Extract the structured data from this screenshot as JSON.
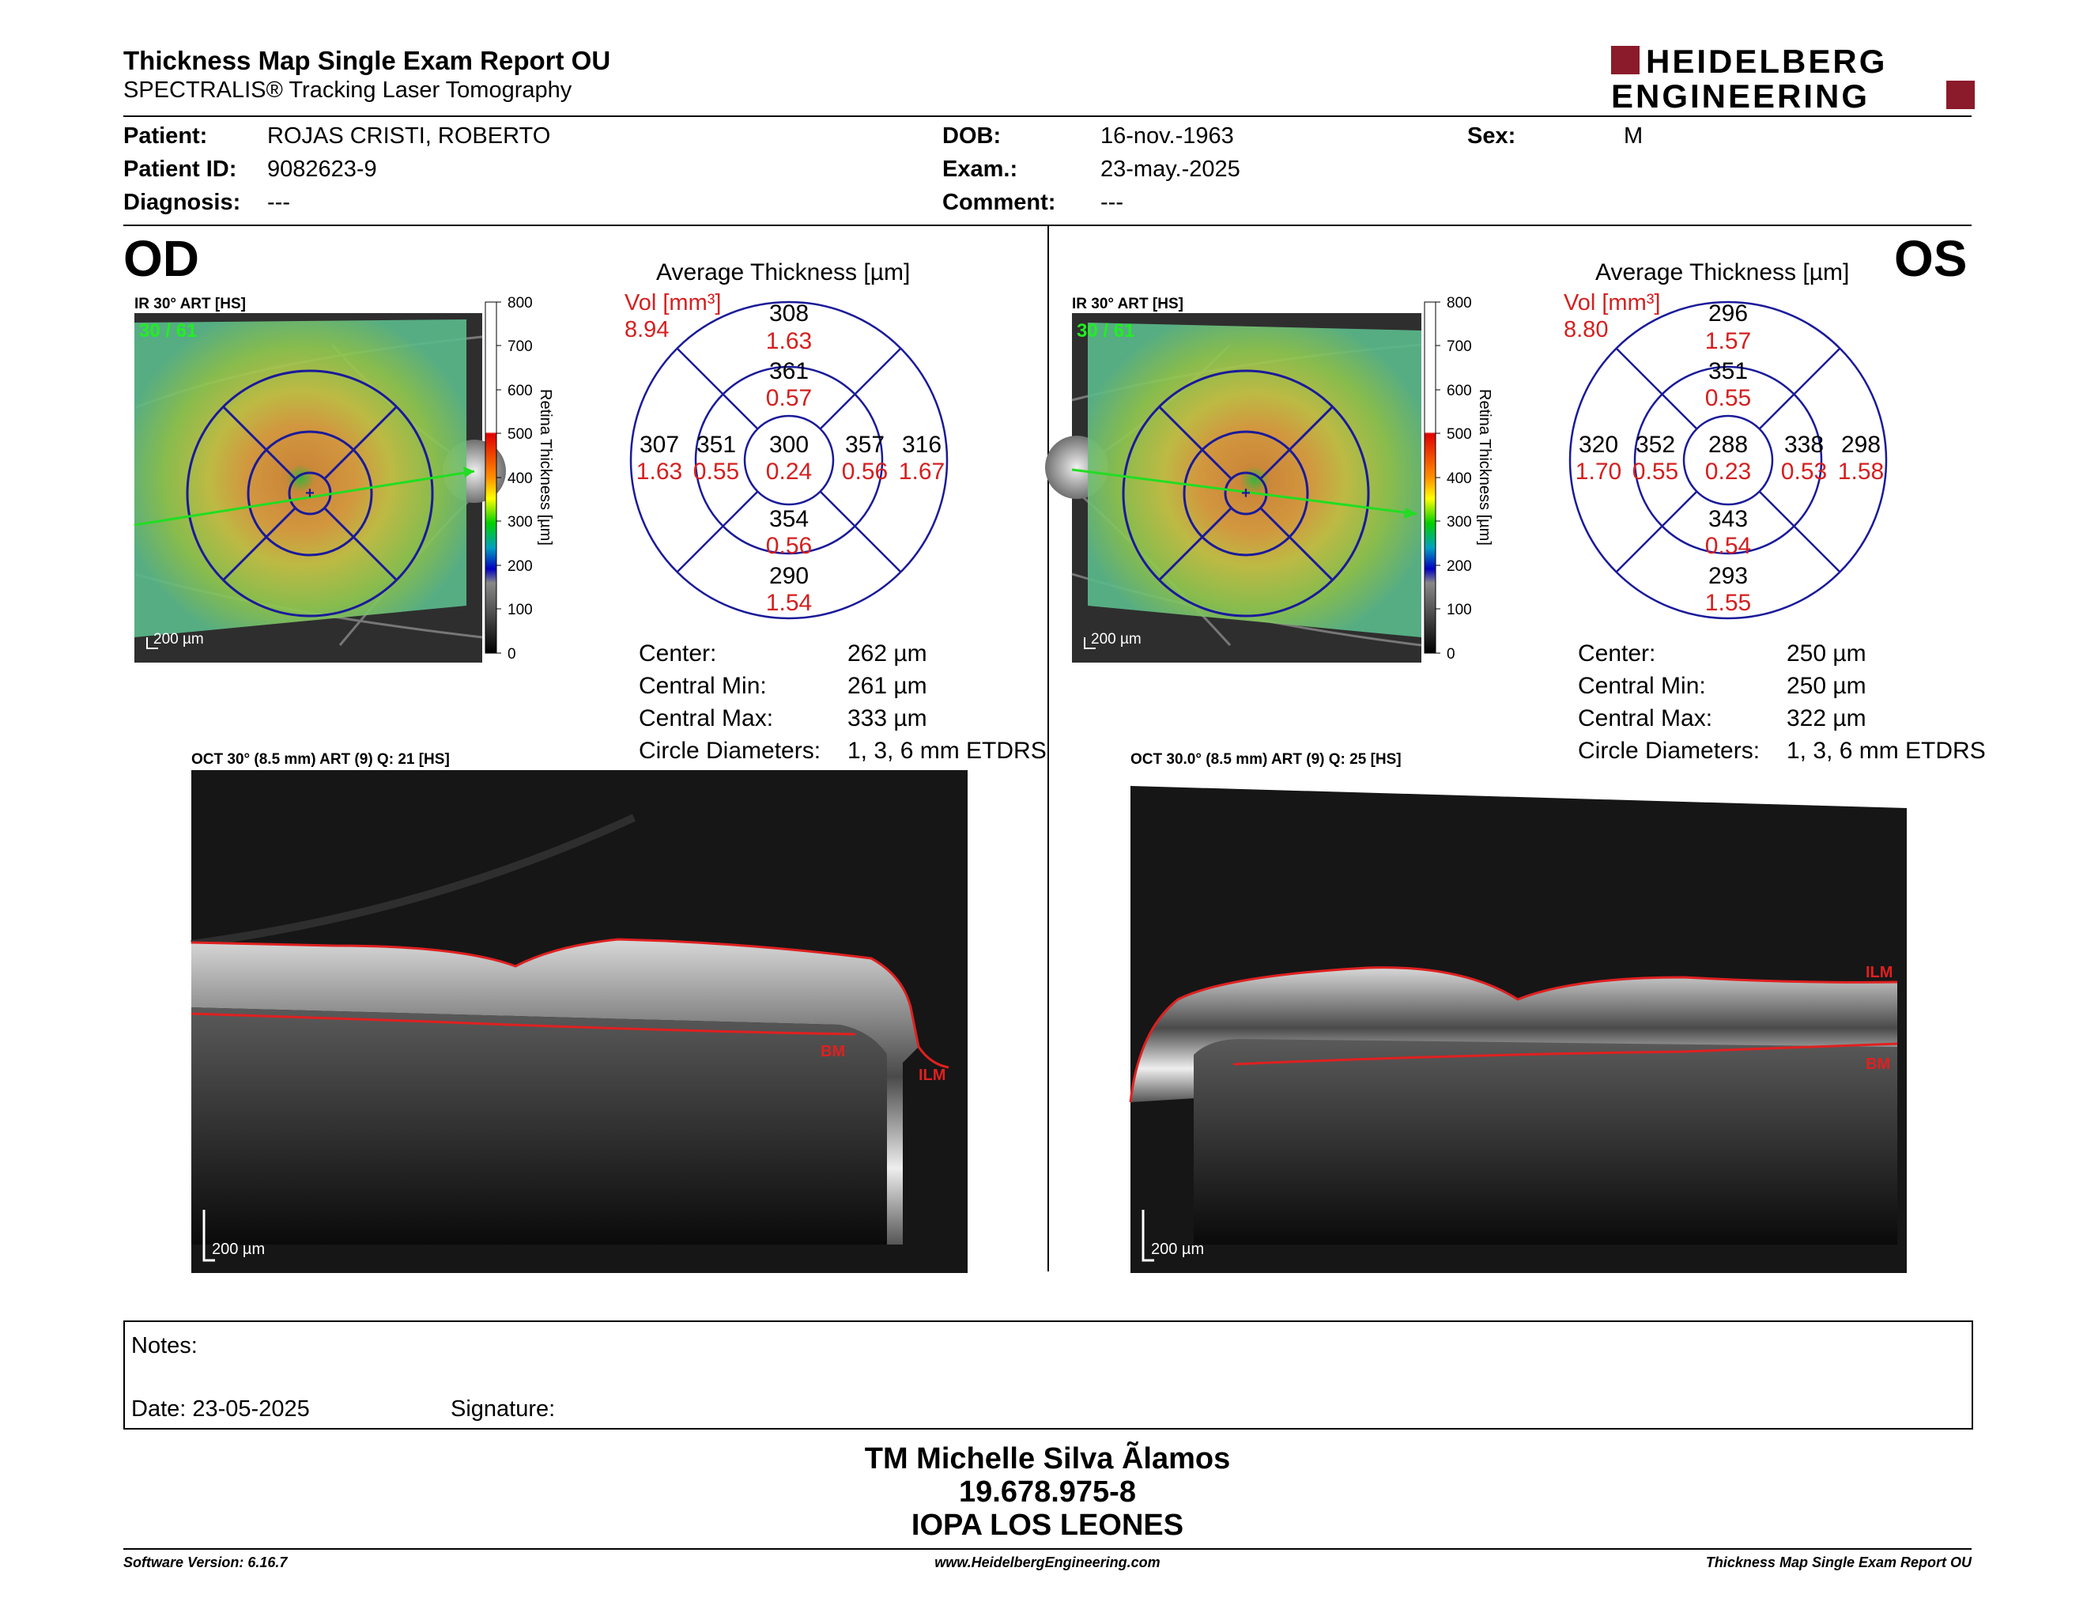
{
  "header": {
    "title": "Thickness Map Single Exam Report OU",
    "subtitle": "SPECTRALIS® Tracking Laser Tomography",
    "logo_line1": "HEIDELBERG",
    "logo_line2": "ENGINEERING",
    "brand_color": "#8b1a2a"
  },
  "patient": {
    "patient_label": "Patient:",
    "patient_value": "ROJAS CRISTI, ROBERTO",
    "id_label": "Patient ID:",
    "id_value": "9082623-9",
    "diagnosis_label": "Diagnosis:",
    "diagnosis_value": "---",
    "dob_label": "DOB:",
    "dob_value": "16-nov.-1963",
    "exam_label": "Exam.:",
    "exam_value": "23-may.-2025",
    "comment_label": "Comment:",
    "comment_value": "---",
    "sex_label": "Sex:",
    "sex_value": "M"
  },
  "od": {
    "eye": "OD",
    "ir_label": "IR 30° ART [HS]",
    "frame_count": "30 / 61",
    "scale": "200 µm",
    "colorbar_title": "Retina Thickness [µm]",
    "colorbar_ticks": [
      "800",
      "700",
      "600",
      "500",
      "400",
      "300",
      "200",
      "100",
      "0"
    ],
    "avg_title": "Average Thickness [µm]",
    "vol_label": "Vol [mm³]",
    "vol_value": "8.94",
    "sectors": {
      "outer_sup": [
        "308",
        "1.63"
      ],
      "inner_sup": [
        "361",
        "0.57"
      ],
      "outer_temp": [
        "307",
        "1.63"
      ],
      "inner_temp": [
        "351",
        "0.55"
      ],
      "center": [
        "300",
        "0.24"
      ],
      "inner_nasal": [
        "357",
        "0.56"
      ],
      "outer_nasal": [
        "316",
        "1.67"
      ],
      "inner_inf": [
        "354",
        "0.56"
      ],
      "outer_inf": [
        "290",
        "1.54"
      ]
    },
    "stats": [
      {
        "label": "Center:",
        "value": "262 µm"
      },
      {
        "label": "Central Min:",
        "value": "261 µm"
      },
      {
        "label": "Central Max:",
        "value": "333 µm"
      },
      {
        "label": "Circle Diameters:",
        "value": "1, 3, 6 mm ETDRS"
      }
    ],
    "oct_label": "OCT 30° (8.5 mm) ART (9) Q: 21 [HS]",
    "oct_scale": "200 µm",
    "bm_label": "BM",
    "ilm_label": "ILM"
  },
  "os": {
    "eye": "OS",
    "ir_label": "IR 30° ART [HS]",
    "frame_count": "30 / 61",
    "scale": "200 µm",
    "colorbar_title": "Retina Thickness [µm]",
    "colorbar_ticks": [
      "800",
      "700",
      "600",
      "500",
      "400",
      "300",
      "200",
      "100",
      "0"
    ],
    "avg_title": "Average Thickness [µm]",
    "vol_label": "Vol [mm³]",
    "vol_value": "8.80",
    "sectors": {
      "outer_sup": [
        "296",
        "1.57"
      ],
      "inner_sup": [
        "351",
        "0.55"
      ],
      "outer_temp": [
        "320",
        "1.70"
      ],
      "inner_temp": [
        "352",
        "0.55"
      ],
      "center": [
        "288",
        "0.23"
      ],
      "inner_nasal": [
        "338",
        "0.53"
      ],
      "outer_nasal": [
        "298",
        "1.58"
      ],
      "inner_inf": [
        "343",
        "0.54"
      ],
      "outer_inf": [
        "293",
        "1.55"
      ]
    },
    "stats": [
      {
        "label": "Center:",
        "value": "250 µm"
      },
      {
        "label": "Central Min:",
        "value": "250 µm"
      },
      {
        "label": "Central Max:",
        "value": "322 µm"
      },
      {
        "label": "Circle Diameters:",
        "value": "1, 3, 6 mm ETDRS"
      }
    ],
    "oct_label": "OCT 30.0° (8.5 mm) ART (9) Q: 25 [HS]",
    "oct_scale": "200 µm",
    "bm_label": "BM",
    "ilm_label": "ILM"
  },
  "notes": {
    "notes_label": "Notes:",
    "date_label": "Date: 23-05-2025",
    "signature_label": "Signature:"
  },
  "signatory": {
    "name": "TM Michelle Silva Ãlamos",
    "id": "19.678.975-8",
    "org": "IOPA LOS LEONES"
  },
  "footer": {
    "software": "Software Version: 6.16.7",
    "website": "www.HeidelbergEngineering.com",
    "report": "Thickness Map Single Exam Report OU"
  }
}
